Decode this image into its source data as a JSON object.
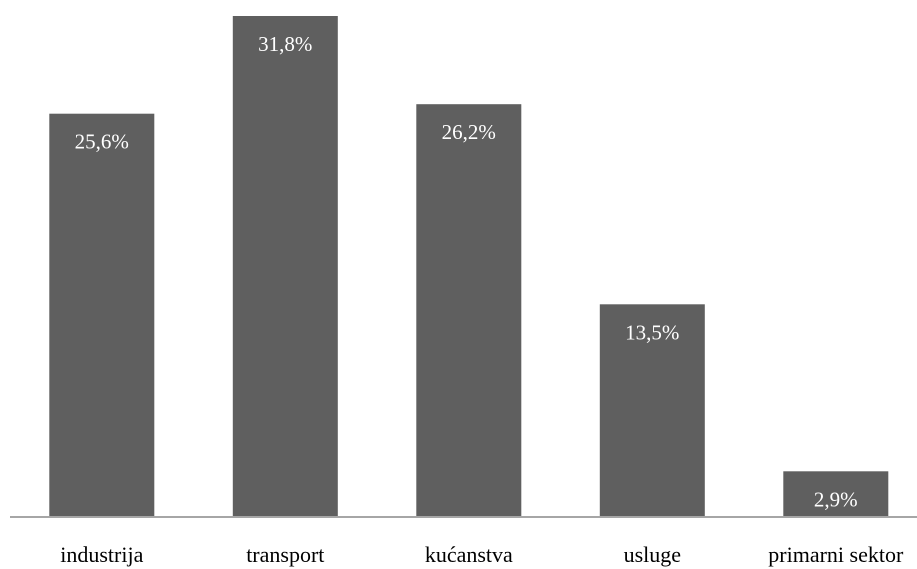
{
  "chart_data": {
    "type": "bar",
    "categories": [
      "industrija",
      "transport",
      "kućanstva",
      "usluge",
      "primarni sektor"
    ],
    "values": [
      25.6,
      31.8,
      26.2,
      13.5,
      2.9
    ],
    "data_labels": [
      "25,6%",
      "31,8%",
      "26,2%",
      "13,5%",
      "2,9%"
    ],
    "unit": "%",
    "ylim": [
      0,
      31.8
    ],
    "grid": false,
    "legend": "none",
    "colors": {
      "bar": "#5f5f5f",
      "data_label": "#ffffff",
      "axis": "#a6a6a6",
      "category_label": "#000000"
    }
  }
}
